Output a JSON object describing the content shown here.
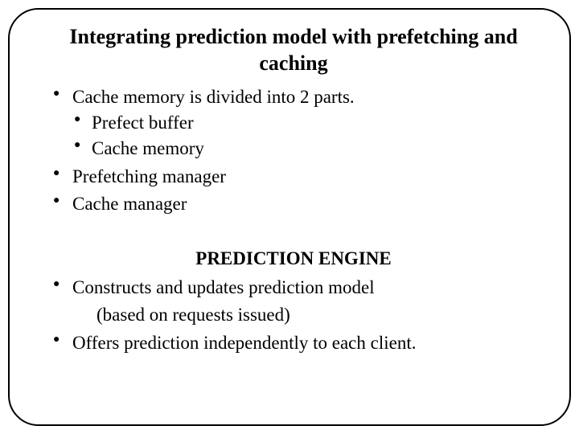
{
  "title": "Integrating prediction model with prefetching and caching",
  "bullets1": {
    "b0": "Cache memory is divided into 2 parts.",
    "sub0": "Prefect buffer",
    "sub1": "Cache memory",
    "b1": " Prefetching manager",
    "b2": " Cache manager"
  },
  "subheading": "PREDICTION ENGINE",
  "bullets2": {
    "b0": "Constructs and updates prediction model",
    "note": "(based on requests issued)",
    "b1": "Offers prediction independently to each client."
  },
  "colors": {
    "text": "#000000",
    "background": "#ffffff",
    "border": "#000000"
  },
  "fonts": {
    "title_size": 26,
    "body_size": 23,
    "family": "Garamond, Georgia, serif"
  }
}
